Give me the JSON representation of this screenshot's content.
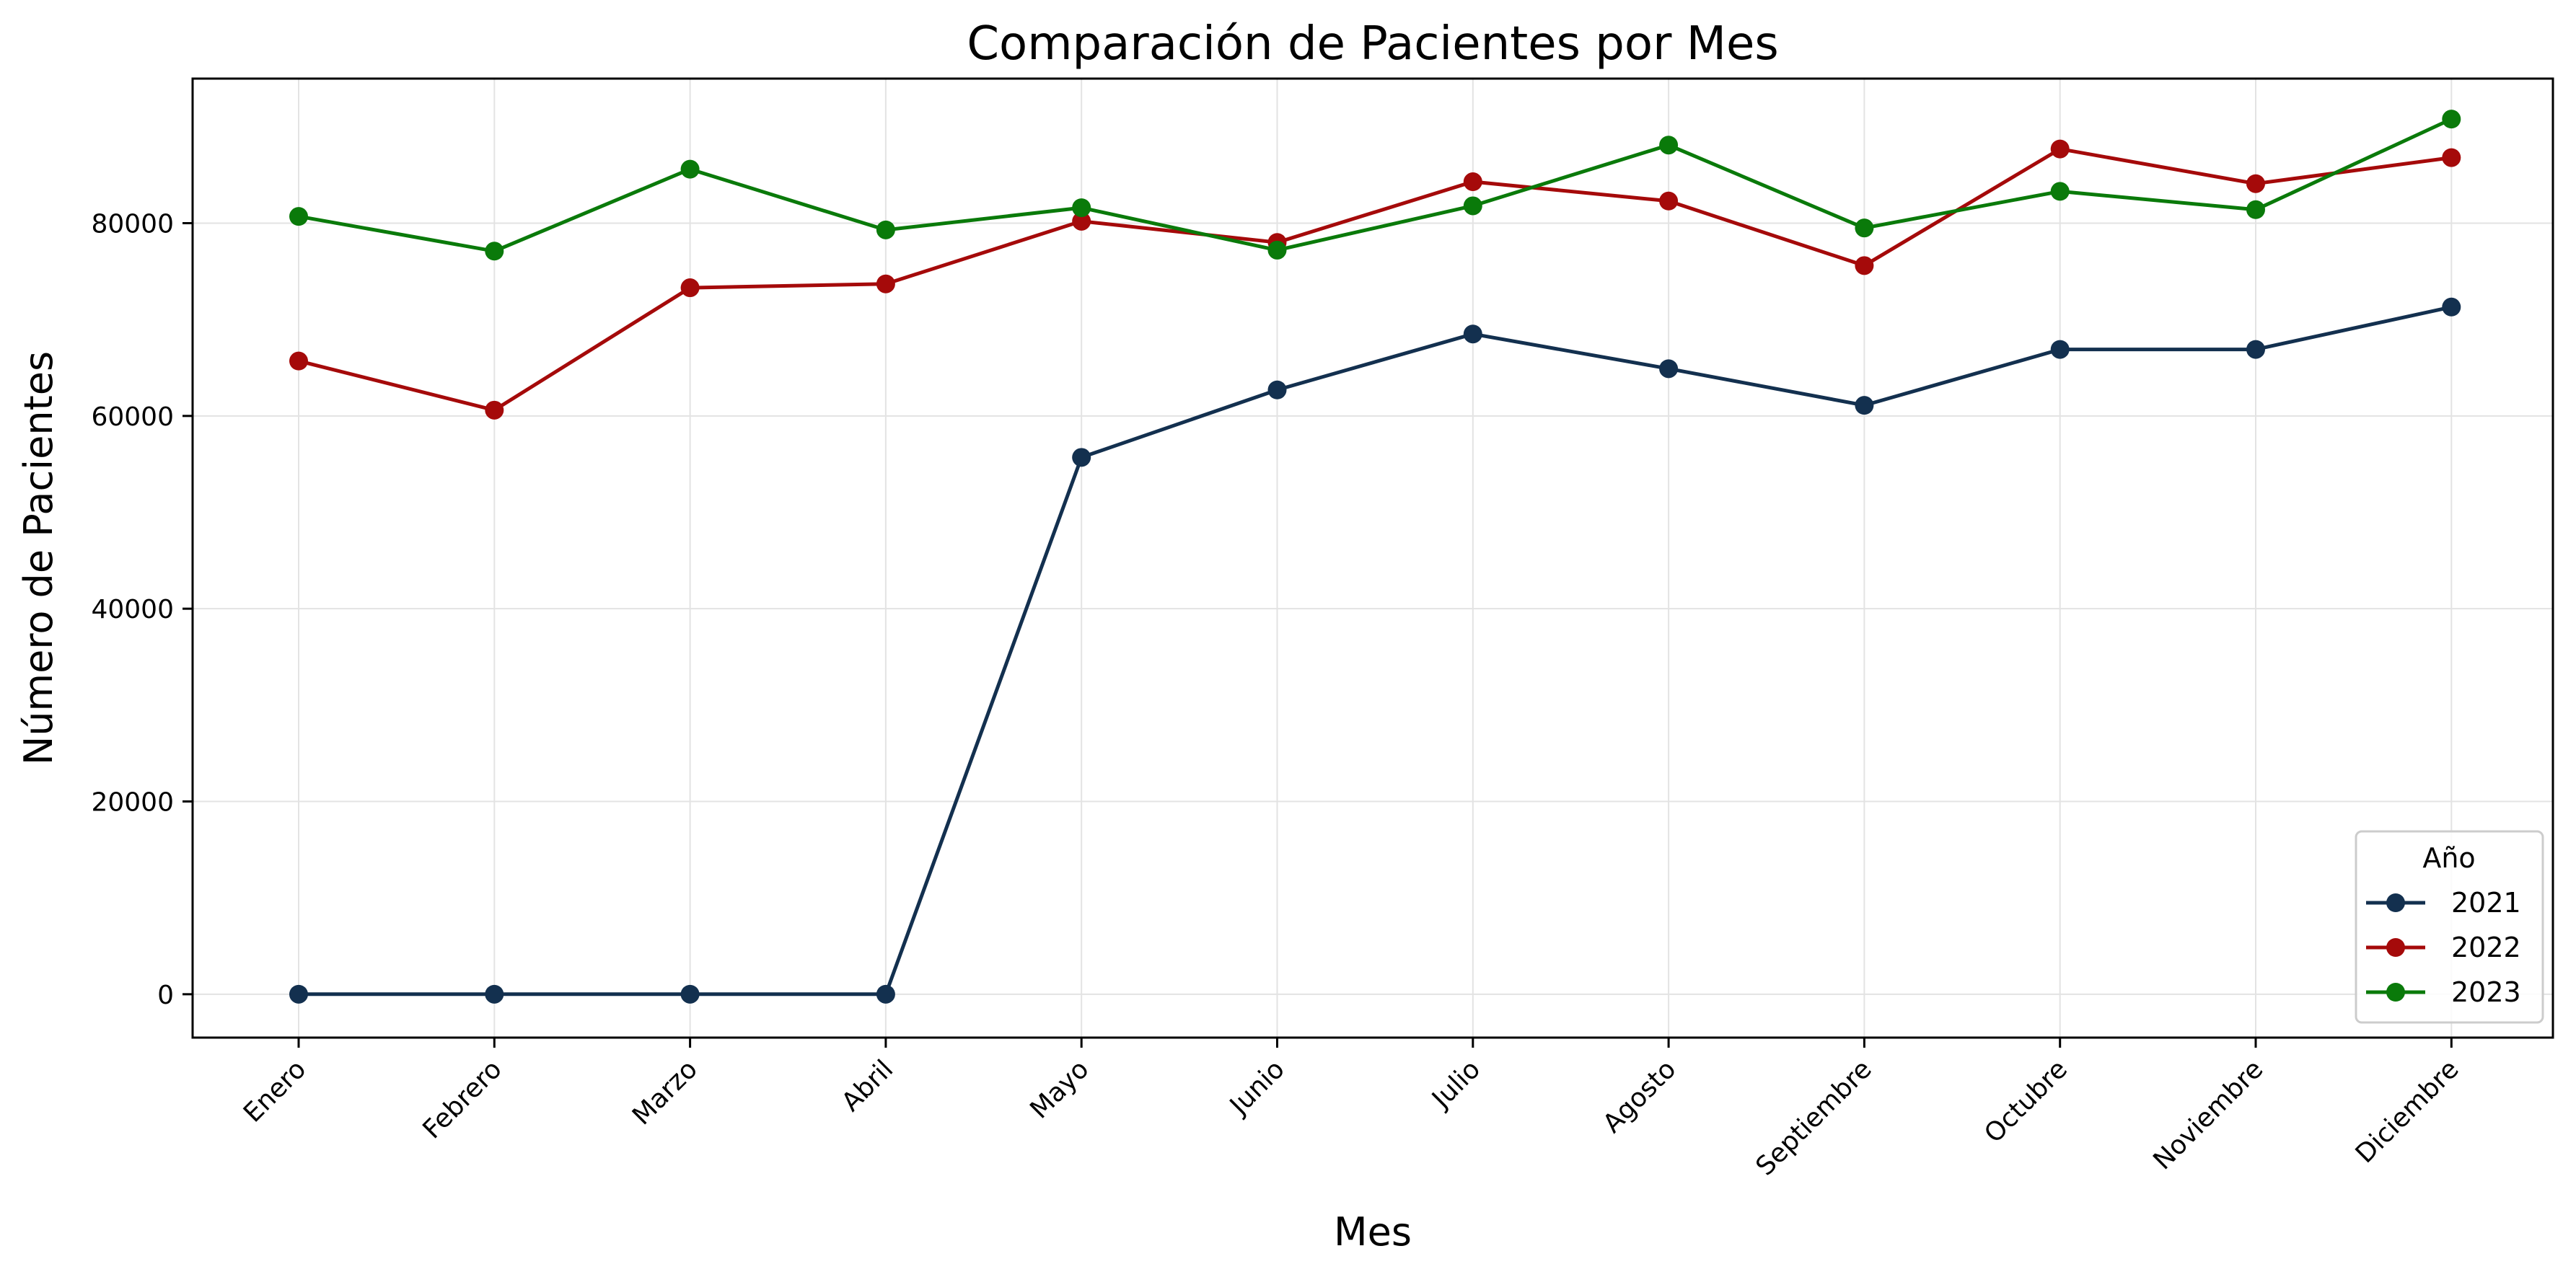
{
  "chart_data": {
    "type": "line",
    "title": "Comparación de Pacientes por Mes",
    "xlabel": "Mes",
    "ylabel": "Número de Pacientes",
    "categories": [
      "Enero",
      "Febrero",
      "Marzo",
      "Abril",
      "Mayo",
      "Junio",
      "Julio",
      "Agosto",
      "Septiembre",
      "Octubre",
      "Noviembre",
      "Diciembre"
    ],
    "y_ticks": [
      "0",
      "20000",
      "40000",
      "60000",
      "80000"
    ],
    "ylim": [
      -4500,
      95000
    ],
    "grid": true,
    "legend": {
      "title": "Año",
      "placement": "bottom-right"
    },
    "series": [
      {
        "name": "2021",
        "color": "#13304f",
        "values": [
          0,
          0,
          0,
          0,
          55700,
          62700,
          68500,
          64900,
          61100,
          66900,
          66900,
          71300
        ]
      },
      {
        "name": "2022",
        "color": "#a50a0a",
        "values": [
          65700,
          60600,
          73300,
          73700,
          80200,
          78000,
          84300,
          82300,
          75600,
          87700,
          84100,
          86800
        ]
      },
      {
        "name": "2023",
        "color": "#0a7a0a",
        "values": [
          80700,
          77100,
          85600,
          79300,
          81600,
          77200,
          81800,
          88100,
          79500,
          83300,
          81400,
          90800
        ]
      }
    ]
  }
}
